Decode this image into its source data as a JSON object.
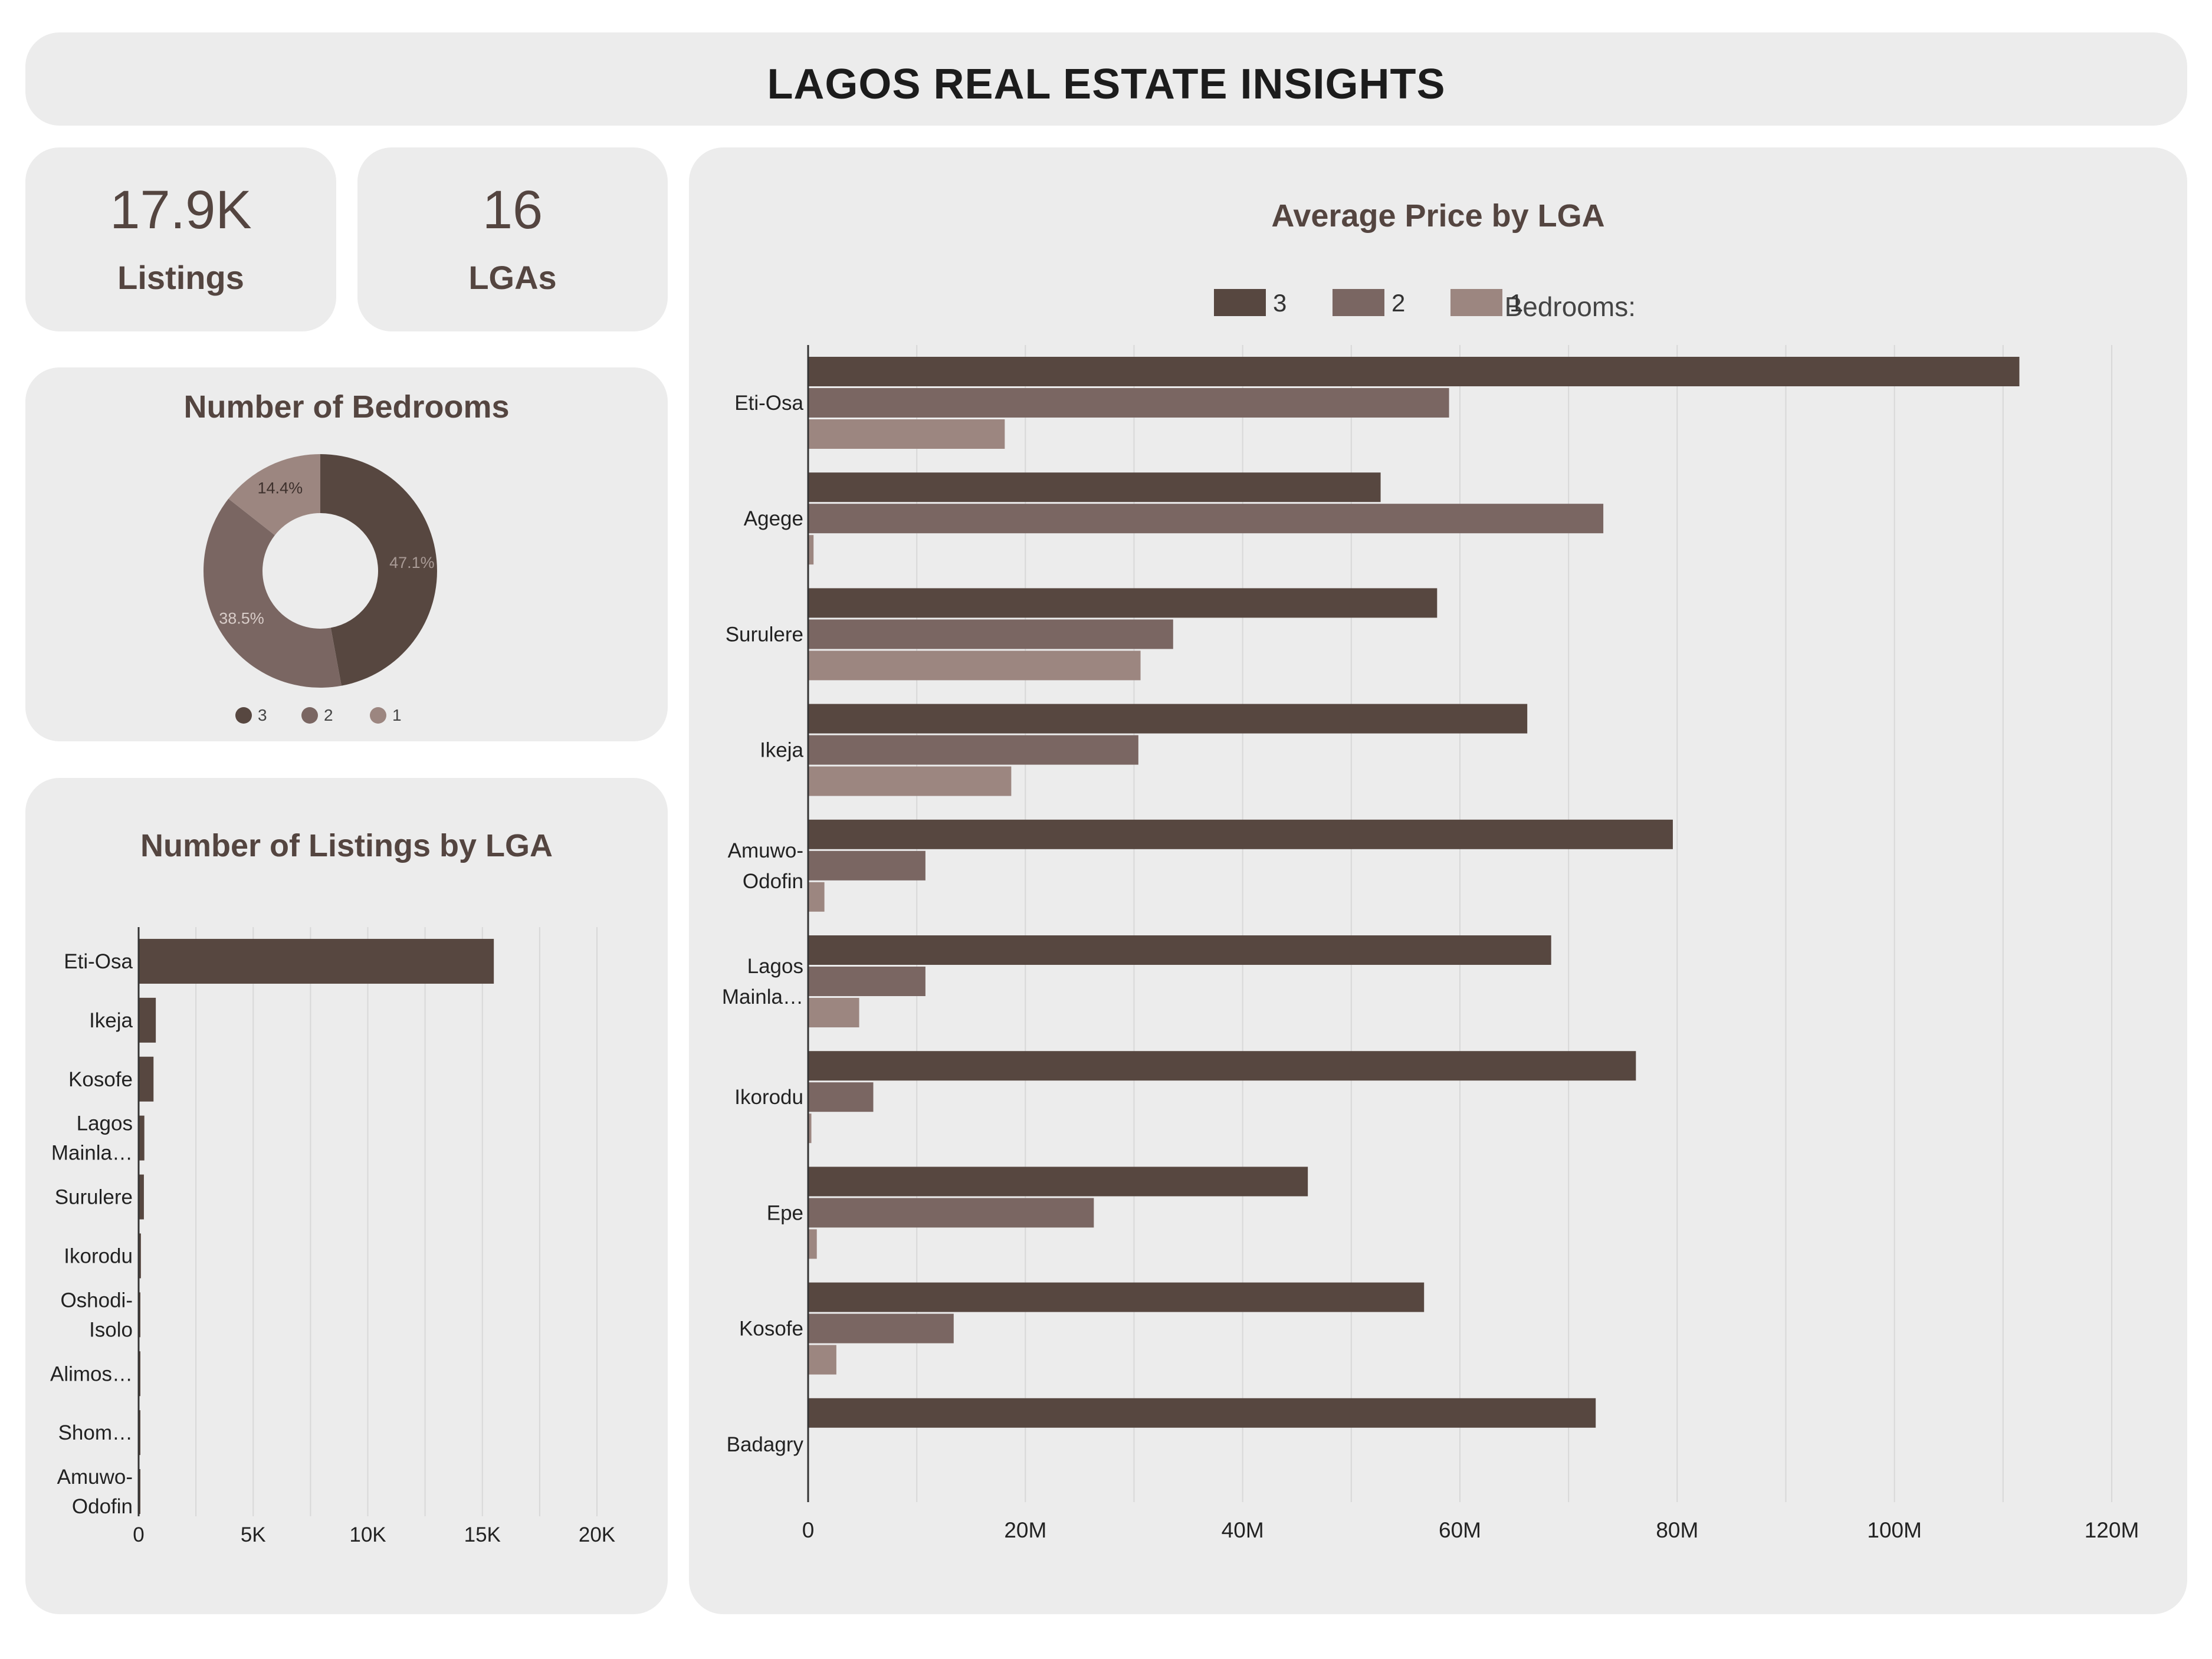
{
  "header": {
    "title": "LAGOS REAL ESTATE INSIGHTS"
  },
  "kpis": [
    {
      "value": "17.9K",
      "label": "Listings"
    },
    {
      "value": "16",
      "label": "LGAs"
    }
  ],
  "colors": {
    "bedroom_3": "#574740",
    "bedroom_2": "#7a6662",
    "bedroom_1": "#9c8680",
    "grid": "#d8d8d8",
    "axis": "#333333",
    "card_background": "#ececec"
  },
  "chart_data": [
    {
      "id": "bedrooms",
      "type": "pie",
      "donut": true,
      "title": "Number of Bedrooms",
      "categories": [
        "3",
        "2",
        "1"
      ],
      "values": [
        47.1,
        38.5,
        14.4
      ],
      "labels": [
        "47.1%",
        "38.5%",
        "14.4%"
      ],
      "legend_position": "bottom"
    },
    {
      "id": "listings",
      "type": "bar",
      "orientation": "horizontal",
      "title": "Number of Listings by LGA",
      "categories": [
        "Eti-Osa",
        "Ikeja",
        "Kosofe",
        "Lagos Mainla…",
        "Surulere",
        "Ikorodu",
        "Oshodi-Isolo",
        "Alimos…",
        "Shom…",
        "Amuwo-Odofin"
      ],
      "category_lines": [
        [
          "Eti-Osa"
        ],
        [
          "Ikeja"
        ],
        [
          "Kosofe"
        ],
        [
          "Lagos",
          "Mainla…"
        ],
        [
          "Surulere"
        ],
        [
          "Ikorodu"
        ],
        [
          "Oshodi-",
          "Isolo"
        ],
        [
          "Alimos…"
        ],
        [
          "Shom…"
        ],
        [
          "Amuwo-",
          "Odofin"
        ]
      ],
      "values": [
        15500,
        750,
        650,
        250,
        230,
        100,
        70,
        60,
        40,
        30
      ],
      "xlim": [
        0,
        20000
      ],
      "xticks": [
        0,
        5000,
        10000,
        15000,
        20000
      ],
      "xtick_labels": [
        "0",
        "5K",
        "10K",
        "15K",
        "20K"
      ],
      "grid": true
    },
    {
      "id": "avg-price",
      "type": "bar",
      "orientation": "horizontal",
      "title": "Average Price by LGA",
      "legend_title": "Bedrooms:",
      "legend_position": "top-right",
      "categories": [
        "Eti-Osa",
        "Agege",
        "Surulere",
        "Ikeja",
        "Amuwo-Odofin",
        "Lagos Mainla…",
        "Ikorodu",
        "Epe",
        "Kosofe",
        "Badagry"
      ],
      "category_lines": [
        [
          "Eti-Osa"
        ],
        [
          "Agege"
        ],
        [
          "Surulere"
        ],
        [
          "Ikeja"
        ],
        [
          "Amuwo-",
          "Odofin"
        ],
        [
          "Lagos",
          "Mainla…"
        ],
        [
          "Ikorodu"
        ],
        [
          "Epe"
        ],
        [
          "Kosofe"
        ],
        [
          "Badagry"
        ]
      ],
      "series": [
        {
          "name": "3",
          "values": [
            111500000,
            52700000,
            57900000,
            66200000,
            79600000,
            68400000,
            76200000,
            46000000,
            56700000,
            72500000
          ]
        },
        {
          "name": "2",
          "values": [
            59000000,
            73200000,
            33600000,
            30400000,
            10800000,
            10800000,
            6000000,
            26300000,
            13400000,
            0
          ]
        },
        {
          "name": "1",
          "values": [
            18100000,
            500000,
            30600000,
            18700000,
            1500000,
            4700000,
            300000,
            800000,
            2600000,
            0
          ]
        }
      ],
      "xlim": [
        0,
        120000000
      ],
      "xticks": [
        0,
        20000000,
        40000000,
        60000000,
        80000000,
        100000000,
        120000000
      ],
      "xtick_labels": [
        "0",
        "20M",
        "40M",
        "60M",
        "80M",
        "100M",
        "120M"
      ],
      "grid": true
    }
  ]
}
